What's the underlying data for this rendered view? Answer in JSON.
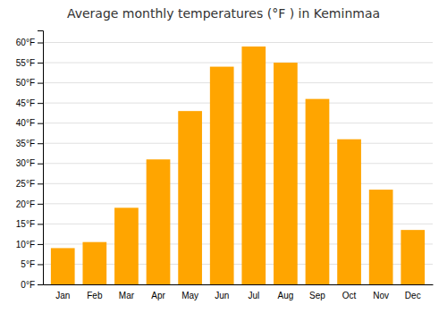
{
  "chart_data": {
    "type": "bar",
    "title": "Average monthly temperatures (°F ) in Keminmaa",
    "categories": [
      "Jan",
      "Feb",
      "Mar",
      "Apr",
      "May",
      "Jun",
      "Jul",
      "Aug",
      "Sep",
      "Oct",
      "Nov",
      "Dec"
    ],
    "values": [
      9.0,
      10.5,
      19.0,
      31.0,
      43.0,
      54.0,
      59.0,
      55.0,
      46.0,
      36.0,
      23.5,
      13.5
    ],
    "color": "#FFA500",
    "ylim": [
      0,
      63
    ],
    "yticks": [
      {
        "value": 0,
        "label": "0°F"
      },
      {
        "value": 5,
        "label": "5°F"
      },
      {
        "value": 10,
        "label": "10°F"
      },
      {
        "value": 15,
        "label": "15°F"
      },
      {
        "value": 20,
        "label": "20°F"
      },
      {
        "value": 25,
        "label": "25°F"
      },
      {
        "value": 30,
        "label": "30°F"
      },
      {
        "value": 35,
        "label": "35°F"
      },
      {
        "value": 40,
        "label": "40°F"
      },
      {
        "value": 45,
        "label": "45°F"
      },
      {
        "value": 50,
        "label": "50°F"
      },
      {
        "value": 55,
        "label": "55°F"
      },
      {
        "value": 60,
        "label": "60°F"
      }
    ],
    "grid": true
  }
}
